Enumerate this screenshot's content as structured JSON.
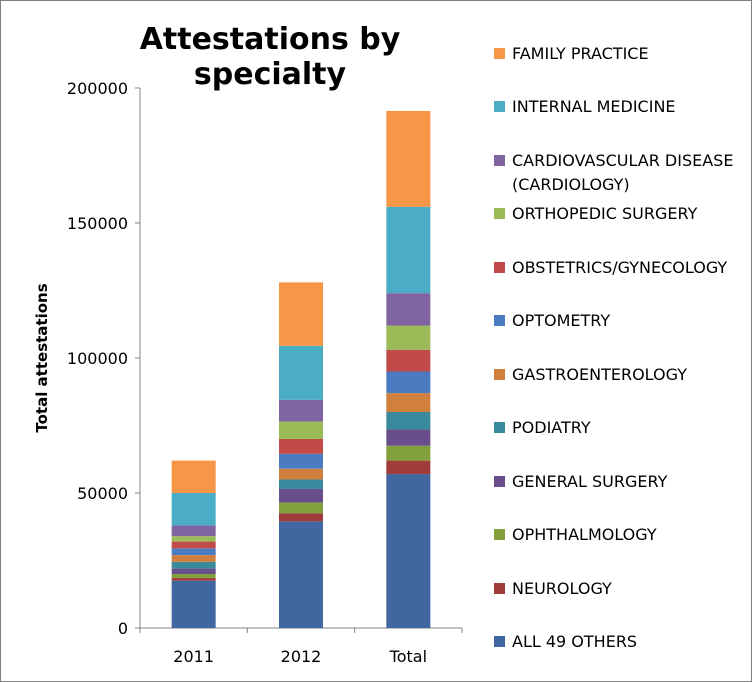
{
  "chart_data": {
    "type": "bar",
    "stacked": true,
    "title": "Attestations by specialty",
    "xlabel": "",
    "ylabel": "Total attestations",
    "categories": [
      "2011",
      "2012",
      "Total"
    ],
    "ylim": [
      0,
      200000
    ],
    "yticks": [
      "0",
      "50000",
      "100000",
      "150000",
      "200000"
    ],
    "grid": false,
    "legend_position": "right",
    "series": [
      {
        "name": "ALL 49 OTHERS",
        "color": "#4067A0",
        "values": [
          17500,
          39500,
          57000
        ]
      },
      {
        "name": "NEUROLOGY",
        "color": "#A03C3A",
        "values": [
          1000,
          3000,
          5000
        ]
      },
      {
        "name": "OPHTHALMOLOGY",
        "color": "#82A03C",
        "values": [
          1500,
          4000,
          5500
        ]
      },
      {
        "name": "GENERAL SURGERY",
        "color": "#6A4E8C",
        "values": [
          2000,
          5000,
          6000
        ]
      },
      {
        "name": "PODIATRY",
        "color": "#3A8A9E",
        "values": [
          2500,
          3500,
          6500
        ]
      },
      {
        "name": "GASTROENTEROLOGY",
        "color": "#D0803C",
        "values": [
          2500,
          4000,
          7000
        ]
      },
      {
        "name": "OPTOMETRY",
        "color": "#4B7CC2",
        "values": [
          2500,
          5500,
          8000
        ]
      },
      {
        "name": "OBSTETRICS/GYNECOLOGY",
        "color": "#C24B4A",
        "values": [
          2500,
          5500,
          8000
        ]
      },
      {
        "name": "ORTHOPEDIC SURGERY",
        "color": "#9BBB59",
        "values": [
          2000,
          6500,
          9000
        ]
      },
      {
        "name": "CARDIOVASCULAR DISEASE (CARDIOLOGY)",
        "color": "#8064A2",
        "values": [
          4000,
          8000,
          12000
        ]
      },
      {
        "name": "INTERNAL MEDICINE",
        "color": "#4BACC6",
        "values": [
          12000,
          20000,
          32000
        ]
      },
      {
        "name": "FAMILY PRACTICE",
        "color": "#F79646",
        "values": [
          12000,
          23500,
          35500
        ]
      }
    ]
  }
}
